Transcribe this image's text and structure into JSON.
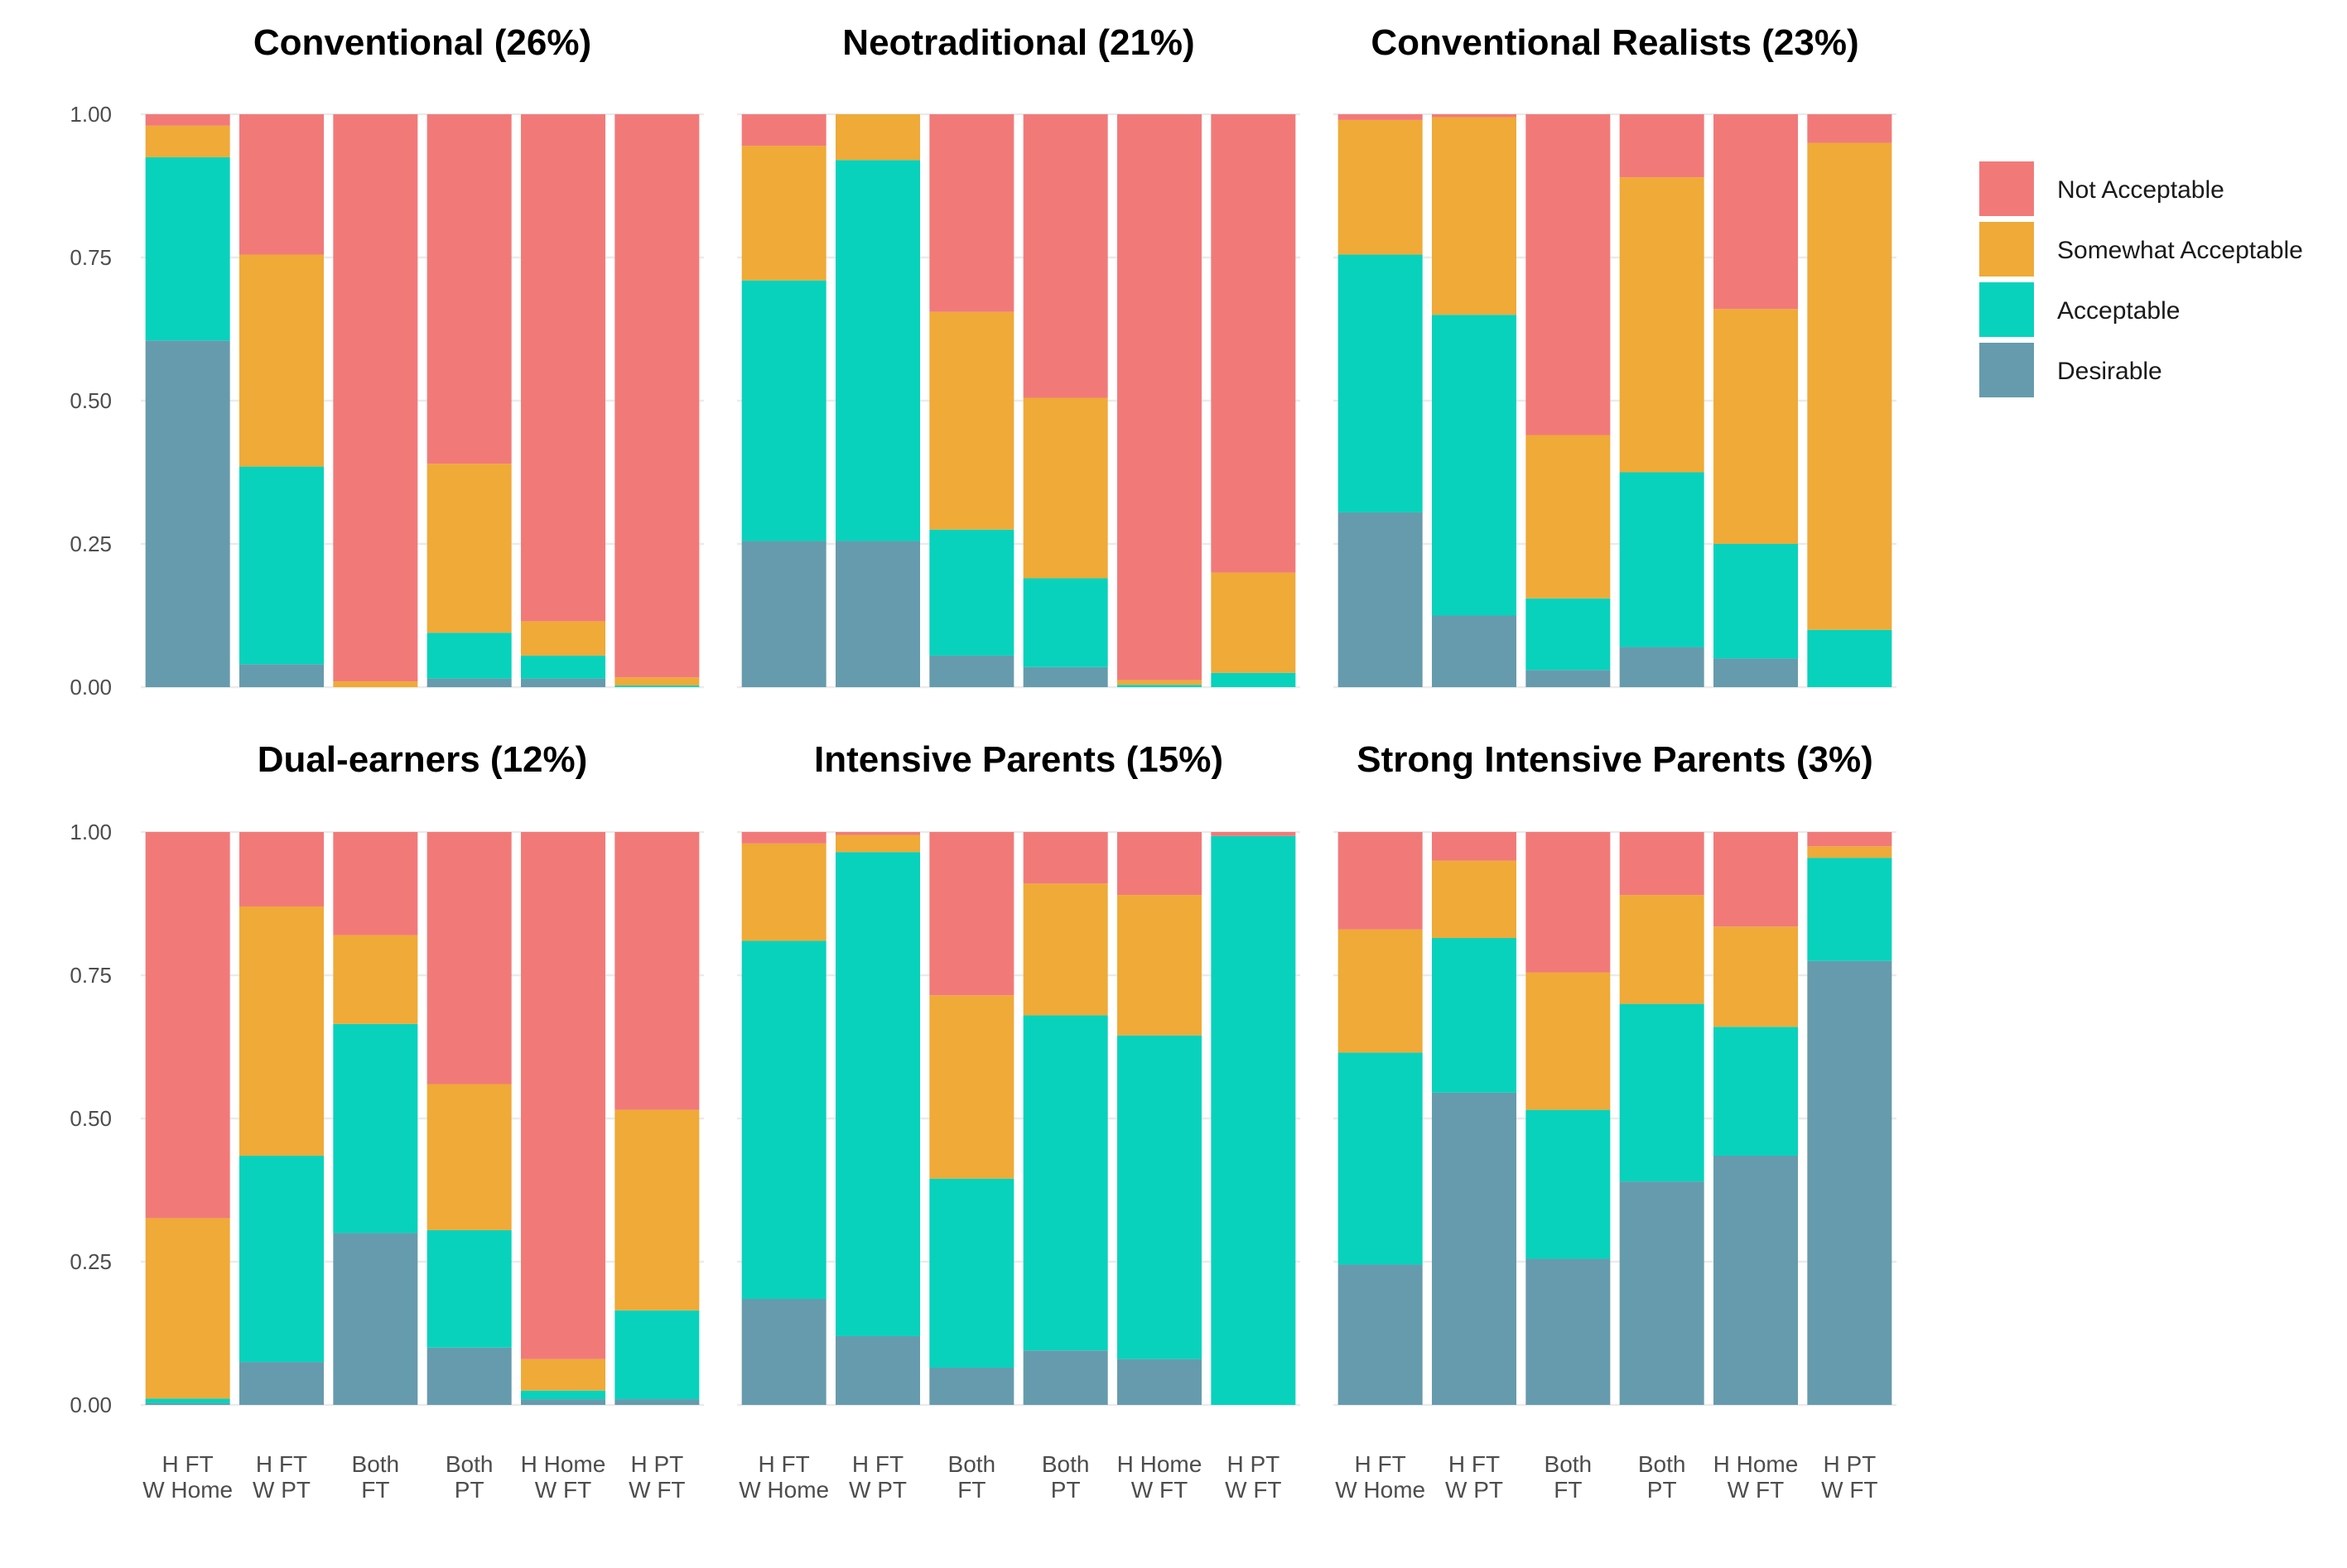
{
  "chart_data": {
    "type": "bar",
    "stacked": true,
    "normalized": true,
    "ylim": [
      0,
      1
    ],
    "y_ticks": [
      "0.00",
      "0.25",
      "0.50",
      "0.75",
      "1.00"
    ],
    "grid": true,
    "legend_position": "right",
    "categories": [
      [
        "H FT",
        "W Home"
      ],
      [
        "H FT",
        "W PT"
      ],
      [
        "Both",
        "FT"
      ],
      [
        "Both",
        "PT"
      ],
      [
        "H Home",
        "W FT"
      ],
      [
        "H PT",
        "W FT"
      ]
    ],
    "levels": [
      {
        "name": "Not Acceptable",
        "color": "#F17A79"
      },
      {
        "name": "Somewhat Acceptable",
        "color": "#EFAA38"
      },
      {
        "name": "Acceptable",
        "color": "#08D2BC"
      },
      {
        "name": "Desirable",
        "color": "#669BAD"
      }
    ],
    "panels": [
      {
        "title": "Conventional (26%)",
        "values": [
          {
            "Desirable": 0.605,
            "Acceptable": 0.32,
            "Somewhat Acceptable": 0.055,
            "Not Acceptable": 0.02
          },
          {
            "Desirable": 0.04,
            "Acceptable": 0.345,
            "Somewhat Acceptable": 0.37,
            "Not Acceptable": 0.245
          },
          {
            "Desirable": 0.0,
            "Acceptable": 0.0,
            "Somewhat Acceptable": 0.01,
            "Not Acceptable": 0.99
          },
          {
            "Desirable": 0.015,
            "Acceptable": 0.08,
            "Somewhat Acceptable": 0.295,
            "Not Acceptable": 0.61
          },
          {
            "Desirable": 0.015,
            "Acceptable": 0.04,
            "Somewhat Acceptable": 0.06,
            "Not Acceptable": 0.885
          },
          {
            "Desirable": 0.0,
            "Acceptable": 0.003,
            "Somewhat Acceptable": 0.014,
            "Not Acceptable": 0.983
          }
        ]
      },
      {
        "title": "Neotraditional (21%)",
        "values": [
          {
            "Desirable": 0.255,
            "Acceptable": 0.455,
            "Somewhat Acceptable": 0.235,
            "Not Acceptable": 0.055
          },
          {
            "Desirable": 0.255,
            "Acceptable": 0.665,
            "Somewhat Acceptable": 0.08,
            "Not Acceptable": 0.0
          },
          {
            "Desirable": 0.055,
            "Acceptable": 0.22,
            "Somewhat Acceptable": 0.38,
            "Not Acceptable": 0.345
          },
          {
            "Desirable": 0.035,
            "Acceptable": 0.155,
            "Somewhat Acceptable": 0.315,
            "Not Acceptable": 0.495
          },
          {
            "Desirable": 0.0,
            "Acceptable": 0.004,
            "Somewhat Acceptable": 0.008,
            "Not Acceptable": 0.988
          },
          {
            "Desirable": 0.0,
            "Acceptable": 0.025,
            "Somewhat Acceptable": 0.175,
            "Not Acceptable": 0.8
          }
        ]
      },
      {
        "title": "Conventional Realists (23%)",
        "values": [
          {
            "Desirable": 0.305,
            "Acceptable": 0.45,
            "Somewhat Acceptable": 0.235,
            "Not Acceptable": 0.01
          },
          {
            "Desirable": 0.125,
            "Acceptable": 0.525,
            "Somewhat Acceptable": 0.345,
            "Not Acceptable": 0.005
          },
          {
            "Desirable": 0.03,
            "Acceptable": 0.125,
            "Somewhat Acceptable": 0.285,
            "Not Acceptable": 0.56
          },
          {
            "Desirable": 0.07,
            "Acceptable": 0.305,
            "Somewhat Acceptable": 0.515,
            "Not Acceptable": 0.11
          },
          {
            "Desirable": 0.05,
            "Acceptable": 0.2,
            "Somewhat Acceptable": 0.41,
            "Not Acceptable": 0.34
          },
          {
            "Desirable": 0.0,
            "Acceptable": 0.1,
            "Somewhat Acceptable": 0.85,
            "Not Acceptable": 0.05
          }
        ]
      },
      {
        "title": "Dual-earners (12%)",
        "values": [
          {
            "Desirable": 0.003,
            "Acceptable": 0.008,
            "Somewhat Acceptable": 0.315,
            "Not Acceptable": 0.674
          },
          {
            "Desirable": 0.075,
            "Acceptable": 0.36,
            "Somewhat Acceptable": 0.435,
            "Not Acceptable": 0.13
          },
          {
            "Desirable": 0.3,
            "Acceptable": 0.365,
            "Somewhat Acceptable": 0.155,
            "Not Acceptable": 0.18
          },
          {
            "Desirable": 0.1,
            "Acceptable": 0.205,
            "Somewhat Acceptable": 0.255,
            "Not Acceptable": 0.44
          },
          {
            "Desirable": 0.01,
            "Acceptable": 0.015,
            "Somewhat Acceptable": 0.055,
            "Not Acceptable": 0.92
          },
          {
            "Desirable": 0.01,
            "Acceptable": 0.155,
            "Somewhat Acceptable": 0.35,
            "Not Acceptable": 0.485
          }
        ]
      },
      {
        "title": "Intensive Parents (15%)",
        "values": [
          {
            "Desirable": 0.185,
            "Acceptable": 0.625,
            "Somewhat Acceptable": 0.17,
            "Not Acceptable": 0.02
          },
          {
            "Desirable": 0.12,
            "Acceptable": 0.845,
            "Somewhat Acceptable": 0.03,
            "Not Acceptable": 0.005
          },
          {
            "Desirable": 0.065,
            "Acceptable": 0.33,
            "Somewhat Acceptable": 0.32,
            "Not Acceptable": 0.285
          },
          {
            "Desirable": 0.095,
            "Acceptable": 0.585,
            "Somewhat Acceptable": 0.23,
            "Not Acceptable": 0.09
          },
          {
            "Desirable": 0.08,
            "Acceptable": 0.565,
            "Somewhat Acceptable": 0.245,
            "Not Acceptable": 0.11
          },
          {
            "Desirable": 0.0,
            "Acceptable": 0.993,
            "Somewhat Acceptable": 0.0,
            "Not Acceptable": 0.007
          }
        ]
      },
      {
        "title": "Strong Intensive Parents (3%)",
        "values": [
          {
            "Desirable": 0.245,
            "Acceptable": 0.37,
            "Somewhat Acceptable": 0.215,
            "Not Acceptable": 0.17
          },
          {
            "Desirable": 0.545,
            "Acceptable": 0.27,
            "Somewhat Acceptable": 0.135,
            "Not Acceptable": 0.05
          },
          {
            "Desirable": 0.255,
            "Acceptable": 0.26,
            "Somewhat Acceptable": 0.24,
            "Not Acceptable": 0.245
          },
          {
            "Desirable": 0.39,
            "Acceptable": 0.31,
            "Somewhat Acceptable": 0.19,
            "Not Acceptable": 0.11
          },
          {
            "Desirable": 0.435,
            "Acceptable": 0.225,
            "Somewhat Acceptable": 0.175,
            "Not Acceptable": 0.165
          },
          {
            "Desirable": 0.775,
            "Acceptable": 0.18,
            "Somewhat Acceptable": 0.02,
            "Not Acceptable": 0.025
          }
        ]
      }
    ]
  }
}
